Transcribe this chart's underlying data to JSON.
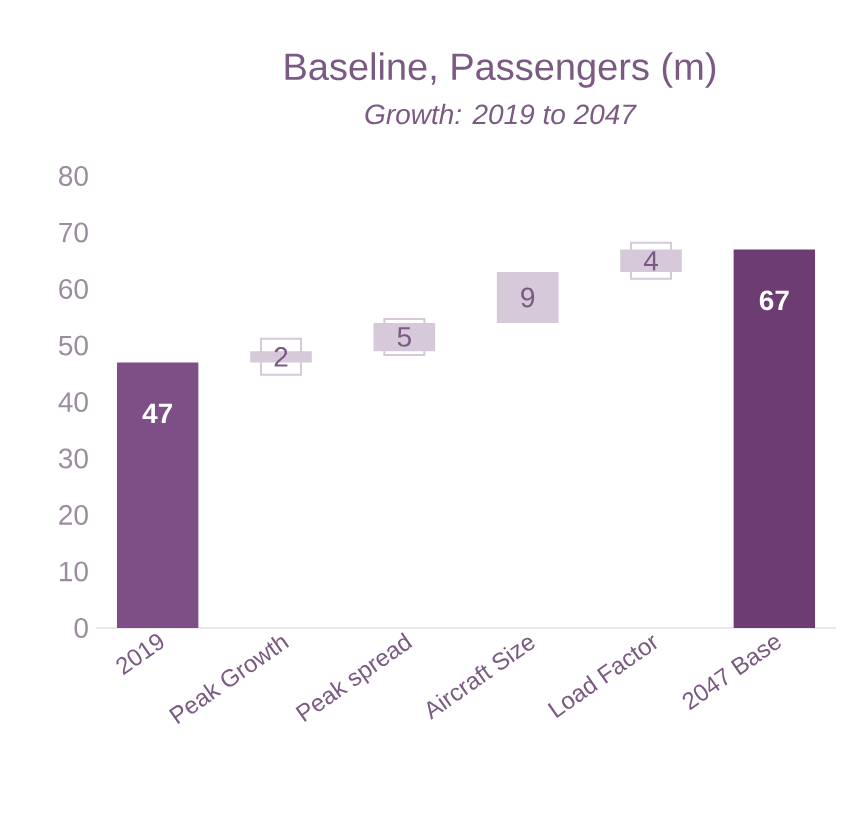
{
  "chart_data": {
    "type": "bar",
    "title": "Baseline, Passengers (m)",
    "subtitle": "Growth: 2019 to 2047",
    "categories": [
      "2019",
      "Peak Growth",
      "Peak spread",
      "Aircraft Size",
      "Load Factor",
      "2047 Base"
    ],
    "values": [
      47,
      2,
      5,
      9,
      4,
      67
    ],
    "base": [
      0,
      47,
      49,
      54,
      63,
      0
    ],
    "colors": [
      "#7d4f86",
      "#d6c9da",
      "#d6c9da",
      "#d6c9da",
      "#d6c9da",
      "#6c3c72"
    ],
    "ylim": [
      0,
      80
    ],
    "yticks": [
      0,
      10,
      20,
      30,
      40,
      50,
      60,
      70,
      80
    ],
    "data_labels": true
  }
}
